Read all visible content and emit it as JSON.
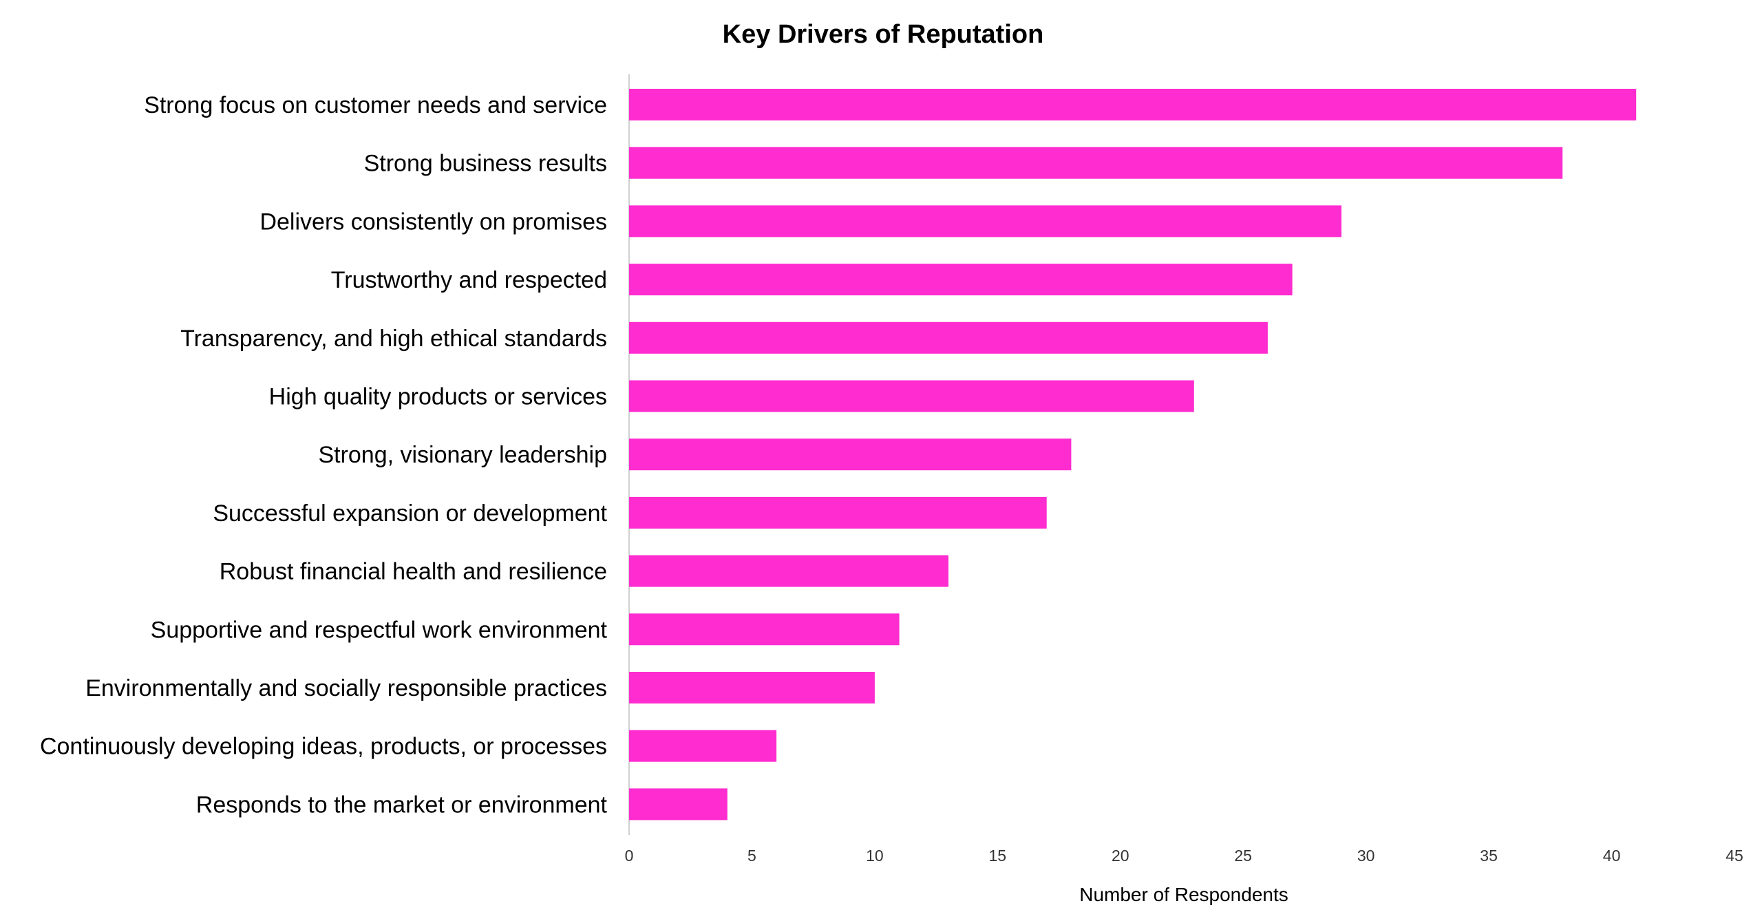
{
  "chart_data": {
    "type": "bar",
    "orientation": "horizontal",
    "title": "Key Drivers of Reputation",
    "xlabel": "Number of Respondents",
    "ylabel": "",
    "xlim": [
      0,
      45
    ],
    "xticks": [
      "0",
      "5",
      "10",
      "15",
      "20",
      "25",
      "30",
      "35",
      "40",
      "45"
    ],
    "grid": false,
    "legend": "none",
    "bar_color": "#FF2CCF",
    "categories": [
      "Strong focus on customer needs and service",
      "Strong business results",
      "Delivers consistently on promises",
      "Trustworthy and respected",
      "Transparency, and high ethical standards",
      "High quality products or services",
      "Strong, visionary leadership",
      "Successful expansion or development",
      "Robust financial health and resilience",
      "Supportive and respectful work environment",
      "Environmentally and socially responsible practices",
      "Continuously developing ideas, products, or processes",
      "Responds to the market or environment"
    ],
    "values": [
      41,
      38,
      29,
      27,
      26,
      23,
      18,
      17,
      13,
      11,
      10,
      6,
      4
    ]
  }
}
